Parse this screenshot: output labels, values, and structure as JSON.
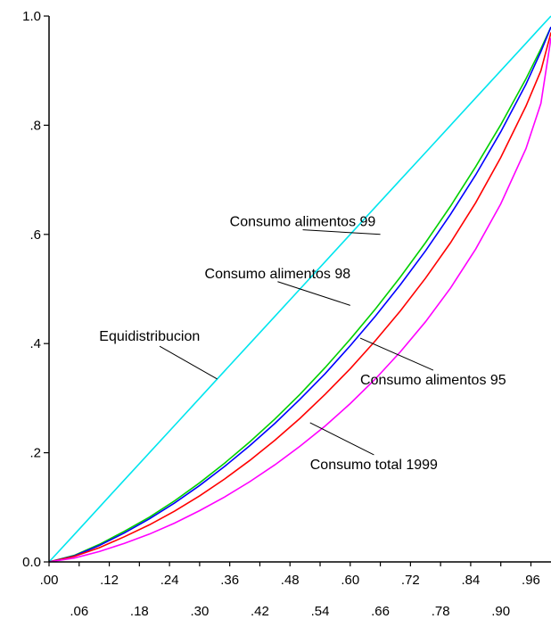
{
  "chart_data": {
    "type": "line",
    "title": "",
    "xlabel": "",
    "ylabel": "",
    "xlim": [
      0,
      1
    ],
    "ylim": [
      0,
      1
    ],
    "grid": false,
    "x_ticks": [
      {
        "value": 0.0,
        "label": ".00",
        "row": 1
      },
      {
        "value": 0.06,
        "label": ".06",
        "row": 2
      },
      {
        "value": 0.12,
        "label": ".12",
        "row": 1
      },
      {
        "value": 0.18,
        "label": ".18",
        "row": 2
      },
      {
        "value": 0.24,
        "label": ".24",
        "row": 1
      },
      {
        "value": 0.3,
        "label": ".30",
        "row": 2
      },
      {
        "value": 0.36,
        "label": ".36",
        "row": 1
      },
      {
        "value": 0.42,
        "label": ".42",
        "row": 2
      },
      {
        "value": 0.48,
        "label": ".48",
        "row": 1
      },
      {
        "value": 0.54,
        "label": ".54",
        "row": 2
      },
      {
        "value": 0.6,
        "label": ".60",
        "row": 1
      },
      {
        "value": 0.66,
        "label": ".66",
        "row": 2
      },
      {
        "value": 0.72,
        "label": ".72",
        "row": 1
      },
      {
        "value": 0.78,
        "label": ".78",
        "row": 2
      },
      {
        "value": 0.84,
        "label": ".84",
        "row": 1
      },
      {
        "value": 0.9,
        "label": ".90",
        "row": 2
      },
      {
        "value": 0.96,
        "label": ".96",
        "row": 1
      }
    ],
    "y_ticks": [
      {
        "value": 0.0,
        "label": "0.0"
      },
      {
        "value": 0.2,
        "label": ".2"
      },
      {
        "value": 0.4,
        "label": ".4"
      },
      {
        "value": 0.6,
        "label": ".6"
      },
      {
        "value": 0.8,
        "label": ".8"
      },
      {
        "value": 1.0,
        "label": "1.0"
      }
    ],
    "x": [
      0,
      0.05,
      0.1,
      0.15,
      0.2,
      0.25,
      0.3,
      0.35,
      0.4,
      0.45,
      0.5,
      0.55,
      0.6,
      0.65,
      0.7,
      0.75,
      0.8,
      0.85,
      0.9,
      0.95,
      0.98,
      1.0
    ],
    "series": [
      {
        "name": "Equidistribucion",
        "color": "#00e5ee",
        "values": [
          0,
          0.05,
          0.1,
          0.15,
          0.2,
          0.25,
          0.3,
          0.35,
          0.4,
          0.45,
          0.5,
          0.55,
          0.6,
          0.65,
          0.7,
          0.75,
          0.8,
          0.85,
          0.9,
          0.95,
          0.98,
          1.0
        ]
      },
      {
        "name": "Consumo alimentos 99",
        "color": "#00d000",
        "values": [
          0,
          0.012,
          0.032,
          0.056,
          0.082,
          0.112,
          0.145,
          0.181,
          0.22,
          0.262,
          0.307,
          0.356,
          0.408,
          0.463,
          0.522,
          0.585,
          0.652,
          0.724,
          0.801,
          0.885,
          0.94,
          0.98
        ]
      },
      {
        "name": "Consumo alimentos 98",
        "color": "#0000ff",
        "values": [
          0,
          0.011,
          0.03,
          0.053,
          0.079,
          0.108,
          0.14,
          0.175,
          0.213,
          0.254,
          0.298,
          0.345,
          0.396,
          0.45,
          0.508,
          0.57,
          0.637,
          0.709,
          0.788,
          0.875,
          0.935,
          0.98
        ]
      },
      {
        "name": "Consumo alimentos 95",
        "color": "#ff0000",
        "values": [
          0,
          0.01,
          0.026,
          0.046,
          0.068,
          0.093,
          0.121,
          0.152,
          0.186,
          0.223,
          0.263,
          0.307,
          0.354,
          0.405,
          0.46,
          0.52,
          0.585,
          0.658,
          0.741,
          0.835,
          0.9,
          0.97
        ]
      },
      {
        "name": "Consumo total 1999",
        "color": "#ff00ff",
        "values": [
          0,
          0.007,
          0.019,
          0.034,
          0.051,
          0.071,
          0.094,
          0.119,
          0.147,
          0.178,
          0.212,
          0.249,
          0.29,
          0.335,
          0.385,
          0.44,
          0.502,
          0.573,
          0.656,
          0.757,
          0.84,
          0.96
        ]
      }
    ],
    "annotations": [
      {
        "text": "Equidistribucion",
        "series": "Equidistribucion",
        "label_x": 0.1,
        "label_y": 0.405,
        "point_x": 0.335,
        "point_y": 0.335
      },
      {
        "text": "Consumo alimentos 99",
        "series": "Consumo alimentos 99",
        "label_x": 0.36,
        "label_y": 0.615,
        "point_x": 0.66,
        "point_y": 0.6
      },
      {
        "text": "Consumo alimentos 98",
        "series": "Consumo alimentos 98",
        "label_x": 0.31,
        "label_y": 0.52,
        "point_x": 0.6,
        "point_y": 0.47
      },
      {
        "text": "Consumo alimentos 95",
        "series": "Consumo alimentos 95",
        "label_x": 0.62,
        "label_y": 0.325,
        "point_x": 0.62,
        "point_y": 0.41
      },
      {
        "text": "Consumo total 1999",
        "series": "Consumo total 1999",
        "label_x": 0.52,
        "label_y": 0.17,
        "point_x": 0.52,
        "point_y": 0.255
      }
    ]
  }
}
